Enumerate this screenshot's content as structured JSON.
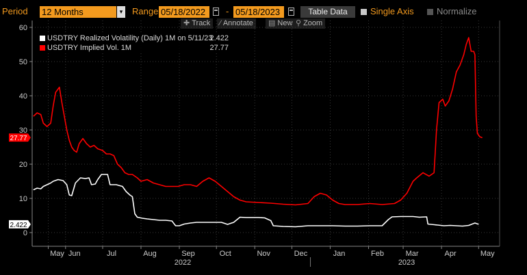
{
  "toolbar": {
    "period_label": "Period",
    "period_value": "12 Months",
    "range_label": "Range",
    "start_date": "05/18/2022",
    "range_separator": "-",
    "end_date": "05/18/2023",
    "table_data_label": "Table Data",
    "single_axis_label": "Single Axis",
    "normalize_label": "Normalize",
    "accent_color": "#f39a1e"
  },
  "subtools": {
    "track": "Track",
    "annotate": "Annotate",
    "news": "News",
    "zoom": "Zoom"
  },
  "legend": {
    "items": [
      {
        "name": "USDTRY Realized Volatility (Daily) 1M on 5/11/23",
        "value": "2.422",
        "color": "#ffffff"
      },
      {
        "name": "USDTRY Implied Vol. 1M",
        "value": "27.77",
        "color": "#ff0000"
      }
    ]
  },
  "chart_data": {
    "type": "line",
    "ylim": [
      -4,
      62
    ],
    "yticks": [
      0,
      10,
      20,
      30,
      40,
      50,
      60
    ],
    "x_months": [
      {
        "label": "May",
        "day": 0
      },
      {
        "label": "Jun",
        "day": 14
      },
      {
        "label": "Jul",
        "day": 44
      },
      {
        "label": "Aug",
        "day": 75
      },
      {
        "label": "Sep",
        "day": 106
      },
      {
        "label": "Oct",
        "day": 136
      },
      {
        "label": "Nov",
        "day": 167
      },
      {
        "label": "Dec",
        "day": 197
      },
      {
        "label": "Jan",
        "day": 228
      },
      {
        "label": "Feb",
        "day": 259
      },
      {
        "label": "Mar",
        "day": 287
      },
      {
        "label": "Apr",
        "day": 318
      },
      {
        "label": "May",
        "day": 348
      }
    ],
    "x_years": [
      {
        "label": "2022",
        "day": 106
      },
      {
        "label": "2023",
        "day": 287
      }
    ],
    "x_range": [
      -13,
      365
    ],
    "last_value_tags": [
      {
        "value": 27.77,
        "text": "27.77",
        "color": "#ff0000",
        "text_color": "#ffffff"
      },
      {
        "value": 2.422,
        "text": "2.422",
        "color": "#ffffff",
        "text_color": "#000000"
      }
    ],
    "series": [
      {
        "name": "USDTRY Implied Vol. 1M",
        "color": "#ff0000",
        "points": [
          [
            -12,
            34
          ],
          [
            -9,
            35
          ],
          [
            -6,
            34.5
          ],
          [
            -4,
            32
          ],
          [
            -1,
            31
          ],
          [
            2,
            32
          ],
          [
            4,
            37
          ],
          [
            6,
            41
          ],
          [
            9,
            42.5
          ],
          [
            11,
            38
          ],
          [
            13,
            34
          ],
          [
            15,
            30
          ],
          [
            17,
            27
          ],
          [
            19,
            25
          ],
          [
            21,
            24
          ],
          [
            23,
            23.5
          ],
          [
            25,
            26
          ],
          [
            28,
            27.5
          ],
          [
            31,
            26
          ],
          [
            34,
            25
          ],
          [
            37,
            25.5
          ],
          [
            40,
            24.5
          ],
          [
            44,
            24
          ],
          [
            47,
            23
          ],
          [
            50,
            23
          ],
          [
            53,
            22.5
          ],
          [
            56,
            20
          ],
          [
            59,
            19
          ],
          [
            62,
            17.5
          ],
          [
            65,
            17
          ],
          [
            68,
            17
          ],
          [
            72,
            16
          ],
          [
            75,
            15
          ],
          [
            80,
            15.5
          ],
          [
            85,
            14.5
          ],
          [
            90,
            14
          ],
          [
            95,
            13.5
          ],
          [
            100,
            13.5
          ],
          [
            105,
            13.5
          ],
          [
            110,
            14
          ],
          [
            115,
            14
          ],
          [
            120,
            13.5
          ],
          [
            125,
            15
          ],
          [
            130,
            16
          ],
          [
            135,
            15
          ],
          [
            140,
            13.5
          ],
          [
            145,
            12
          ],
          [
            150,
            10.5
          ],
          [
            155,
            9.5
          ],
          [
            160,
            9
          ],
          [
            170,
            8.8
          ],
          [
            180,
            8.6
          ],
          [
            190,
            8.3
          ],
          [
            200,
            8.1
          ],
          [
            210,
            8.5
          ],
          [
            215,
            10.5
          ],
          [
            220,
            11.5
          ],
          [
            225,
            11
          ],
          [
            230,
            9.5
          ],
          [
            235,
            8.5
          ],
          [
            240,
            8.2
          ],
          [
            250,
            8.2
          ],
          [
            260,
            8.5
          ],
          [
            270,
            8.2
          ],
          [
            280,
            8.5
          ],
          [
            285,
            9.5
          ],
          [
            290,
            11.5
          ],
          [
            295,
            15
          ],
          [
            298,
            16
          ],
          [
            303,
            17.5
          ],
          [
            308,
            16.5
          ],
          [
            312,
            17.5
          ],
          [
            314,
            30
          ],
          [
            316,
            38
          ],
          [
            319,
            39
          ],
          [
            321,
            37
          ],
          [
            324,
            38.5
          ],
          [
            327,
            42
          ],
          [
            330,
            47
          ],
          [
            333,
            49
          ],
          [
            336,
            52
          ],
          [
            338,
            55
          ],
          [
            340,
            57
          ],
          [
            342,
            53
          ],
          [
            344,
            53
          ],
          [
            345,
            52
          ],
          [
            346,
            34
          ],
          [
            347,
            29
          ],
          [
            349,
            28
          ],
          [
            351,
            27.77
          ]
        ]
      },
      {
        "name": "USDTRY Realized Volatility (Daily) 1M",
        "color": "#ffffff",
        "points": [
          [
            -12,
            12.5
          ],
          [
            -9,
            13
          ],
          [
            -6,
            12.8
          ],
          [
            -4,
            13.5
          ],
          [
            -1,
            14
          ],
          [
            2,
            14.5
          ],
          [
            4,
            15
          ],
          [
            8,
            15.5
          ],
          [
            12,
            15.2
          ],
          [
            15,
            14
          ],
          [
            17,
            11
          ],
          [
            19,
            10.8
          ],
          [
            22,
            14.5
          ],
          [
            26,
            16
          ],
          [
            30,
            15.8
          ],
          [
            33,
            16
          ],
          [
            35,
            14
          ],
          [
            38,
            14.2
          ],
          [
            40,
            15.5
          ],
          [
            43,
            17
          ],
          [
            48,
            17
          ],
          [
            50,
            14
          ],
          [
            55,
            14
          ],
          [
            60,
            13.5
          ],
          [
            63,
            12
          ],
          [
            66,
            11
          ],
          [
            68,
            10.5
          ],
          [
            70,
            5.5
          ],
          [
            72,
            4.5
          ],
          [
            76,
            4.2
          ],
          [
            80,
            4
          ],
          [
            85,
            3.8
          ],
          [
            90,
            3.6
          ],
          [
            95,
            3.6
          ],
          [
            100,
            3.4
          ],
          [
            103,
            2
          ],
          [
            106,
            2
          ],
          [
            110,
            2.5
          ],
          [
            115,
            2.8
          ],
          [
            120,
            3
          ],
          [
            130,
            3
          ],
          [
            140,
            3
          ],
          [
            145,
            2.4
          ],
          [
            150,
            3
          ],
          [
            155,
            4.5
          ],
          [
            160,
            4.4
          ],
          [
            170,
            4.4
          ],
          [
            175,
            4.3
          ],
          [
            180,
            3.5
          ],
          [
            182,
            2
          ],
          [
            190,
            1.8
          ],
          [
            200,
            1.7
          ],
          [
            210,
            2
          ],
          [
            220,
            2
          ],
          [
            230,
            2
          ],
          [
            240,
            1.9
          ],
          [
            250,
            1.9
          ],
          [
            260,
            2
          ],
          [
            270,
            2
          ],
          [
            275,
            3.8
          ],
          [
            278,
            4.6
          ],
          [
            285,
            4.7
          ],
          [
            290,
            4.7
          ],
          [
            295,
            4.7
          ],
          [
            300,
            4.5
          ],
          [
            306,
            4.6
          ],
          [
            307,
            2.5
          ],
          [
            315,
            2.2
          ],
          [
            320,
            2
          ],
          [
            325,
            2.1
          ],
          [
            330,
            2
          ],
          [
            335,
            1.9
          ],
          [
            340,
            2.1
          ],
          [
            345,
            2.8
          ],
          [
            348,
            2.42
          ]
        ]
      }
    ]
  }
}
